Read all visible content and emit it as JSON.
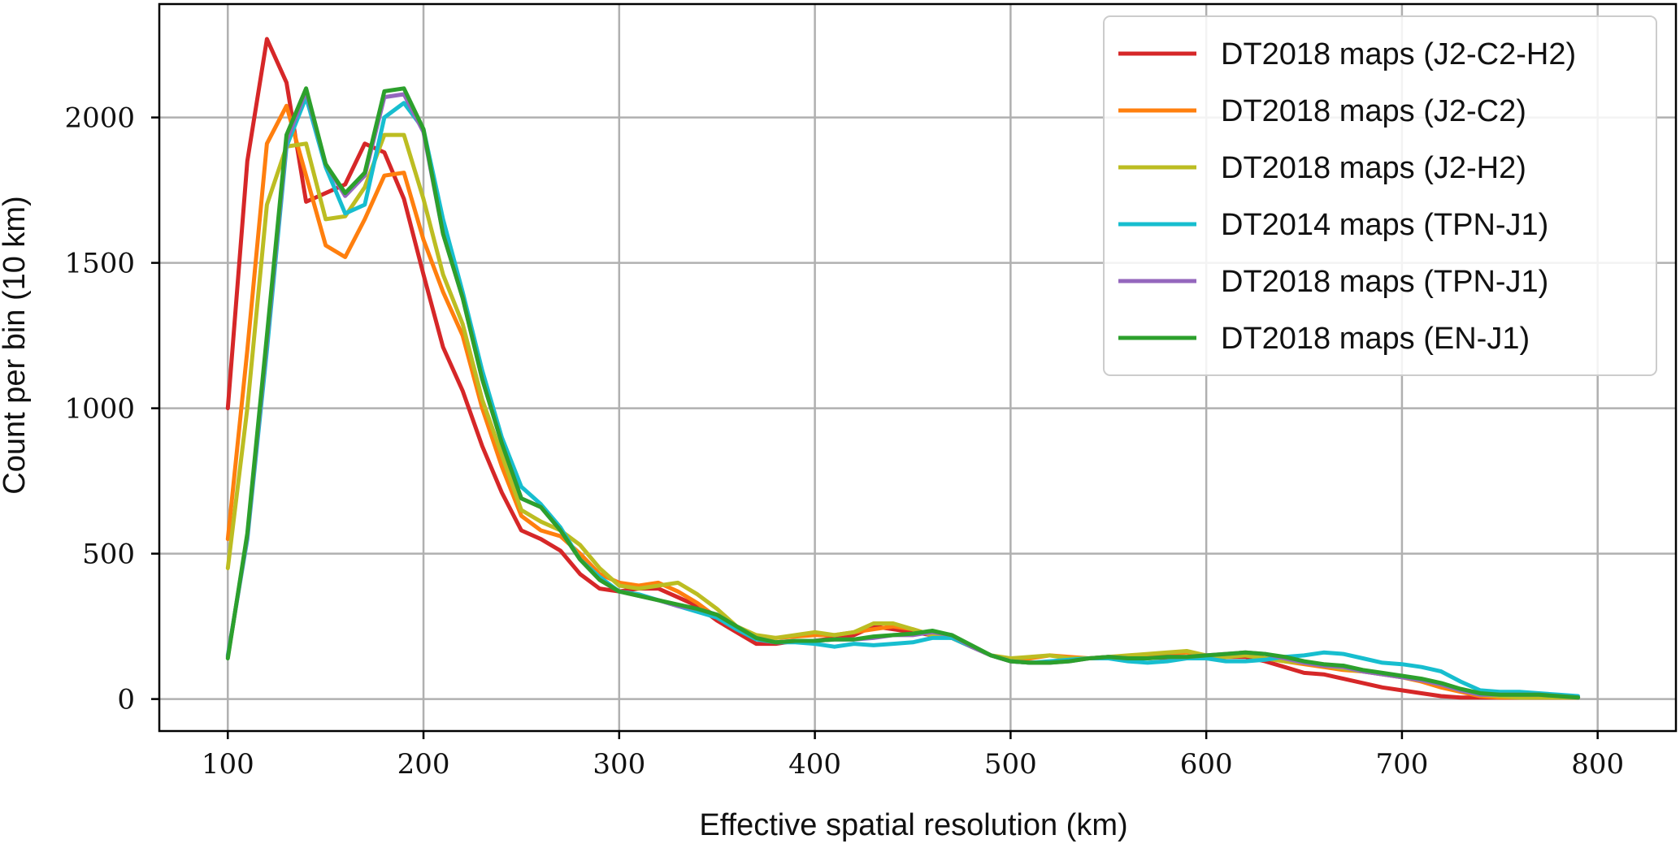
{
  "chart_data": {
    "type": "line",
    "title": "",
    "xlabel": "Effective spatial resolution (km)",
    "ylabel": "Count per bin (10 km)",
    "xlim": [
      65,
      840
    ],
    "ylim": [
      -110,
      2390
    ],
    "xticks": [
      100,
      200,
      300,
      400,
      500,
      600,
      700,
      800
    ],
    "yticks": [
      0,
      500,
      1000,
      1500,
      2000
    ],
    "xtick_labels": [
      "100",
      "200",
      "300",
      "400",
      "500",
      "600",
      "700",
      "800"
    ],
    "ytick_labels": [
      "0",
      "500",
      "1000",
      "1500",
      "2000"
    ],
    "grid": true,
    "legend_position": "top-right",
    "x": [
      100,
      110,
      120,
      130,
      140,
      150,
      160,
      170,
      180,
      190,
      200,
      210,
      220,
      230,
      240,
      250,
      260,
      270,
      280,
      290,
      300,
      310,
      320,
      330,
      340,
      350,
      360,
      370,
      380,
      390,
      400,
      410,
      420,
      430,
      440,
      450,
      460,
      470,
      480,
      490,
      500,
      510,
      520,
      530,
      540,
      550,
      560,
      570,
      580,
      590,
      600,
      610,
      620,
      630,
      640,
      650,
      660,
      670,
      680,
      690,
      700,
      710,
      720,
      730,
      740,
      750,
      760,
      770,
      780,
      790
    ],
    "series": [
      {
        "name": "DT2018 maps (J2-C2-H2)",
        "color": "#d62728",
        "values": [
          1000,
          1850,
          2270,
          2120,
          1710,
          1740,
          1770,
          1910,
          1880,
          1720,
          1460,
          1210,
          1060,
          870,
          710,
          580,
          550,
          510,
          430,
          380,
          370,
          380,
          380,
          350,
          320,
          270,
          230,
          190,
          190,
          200,
          200,
          210,
          220,
          250,
          240,
          230,
          220,
          210,
          180,
          150,
          130,
          125,
          125,
          135,
          140,
          140,
          140,
          145,
          140,
          140,
          140,
          145,
          145,
          130,
          110,
          90,
          85,
          70,
          55,
          40,
          30,
          20,
          10,
          5,
          5,
          5,
          5,
          5,
          5,
          5
        ]
      },
      {
        "name": "DT2018 maps (J2-C2)",
        "color": "#ff7f0e",
        "values": [
          550,
          1200,
          1910,
          2040,
          1800,
          1560,
          1520,
          1650,
          1800,
          1810,
          1580,
          1400,
          1250,
          1000,
          800,
          630,
          580,
          560,
          500,
          430,
          400,
          390,
          400,
          370,
          330,
          280,
          240,
          210,
          210,
          215,
          220,
          220,
          230,
          240,
          250,
          240,
          220,
          210,
          180,
          150,
          130,
          140,
          150,
          145,
          140,
          145,
          140,
          150,
          155,
          160,
          150,
          145,
          150,
          140,
          130,
          120,
          110,
          100,
          95,
          85,
          75,
          60,
          40,
          25,
          10,
          5,
          5,
          5,
          5,
          5
        ]
      },
      {
        "name": "DT2018 maps (J2-H2)",
        "color": "#bcbd22",
        "values": [
          450,
          1000,
          1700,
          1900,
          1910,
          1650,
          1660,
          1760,
          1940,
          1940,
          1720,
          1460,
          1290,
          1030,
          840,
          650,
          610,
          580,
          530,
          450,
          390,
          380,
          390,
          400,
          360,
          310,
          250,
          220,
          210,
          220,
          230,
          220,
          230,
          260,
          260,
          240,
          220,
          210,
          180,
          150,
          140,
          145,
          150,
          140,
          140,
          145,
          150,
          155,
          160,
          165,
          150,
          145,
          150,
          140,
          130,
          125,
          115,
          105,
          95,
          85,
          75,
          65,
          50,
          30,
          15,
          10,
          5,
          5,
          5,
          5
        ]
      },
      {
        "name": "DT2014 maps (TPN-J1)",
        "color": "#17becf",
        "values": [
          150,
          550,
          1200,
          1900,
          2070,
          1830,
          1670,
          1700,
          2000,
          2050,
          1960,
          1650,
          1400,
          1130,
          900,
          730,
          670,
          590,
          480,
          420,
          370,
          360,
          340,
          320,
          300,
          280,
          240,
          205,
          195,
          195,
          190,
          180,
          190,
          185,
          190,
          195,
          210,
          210,
          180,
          150,
          130,
          125,
          130,
          135,
          140,
          140,
          130,
          125,
          130,
          140,
          140,
          130,
          130,
          135,
          145,
          150,
          160,
          155,
          140,
          125,
          120,
          110,
          95,
          60,
          30,
          25,
          25,
          20,
          15,
          10
        ]
      },
      {
        "name": "DT2018 maps (TPN-J1)",
        "color": "#9467bd",
        "values": [
          145,
          560,
          1230,
          1920,
          2090,
          1840,
          1730,
          1800,
          2070,
          2080,
          1950,
          1600,
          1380,
          1100,
          880,
          690,
          660,
          580,
          480,
          410,
          370,
          355,
          340,
          320,
          310,
          290,
          250,
          210,
          195,
          200,
          200,
          205,
          205,
          210,
          220,
          220,
          230,
          220,
          180,
          150,
          130,
          125,
          125,
          130,
          140,
          145,
          140,
          140,
          145,
          145,
          150,
          155,
          160,
          155,
          140,
          125,
          115,
          110,
          95,
          85,
          75,
          65,
          50,
          30,
          15,
          15,
          15,
          15,
          10,
          5
        ]
      },
      {
        "name": "DT2018 maps (EN-J1)",
        "color": "#2ca02c",
        "values": [
          140,
          570,
          1250,
          1940,
          2100,
          1840,
          1740,
          1810,
          2090,
          2100,
          1960,
          1600,
          1380,
          1100,
          880,
          690,
          660,
          580,
          480,
          410,
          370,
          355,
          340,
          325,
          310,
          290,
          250,
          210,
          195,
          200,
          200,
          205,
          205,
          215,
          220,
          225,
          235,
          220,
          185,
          150,
          130,
          125,
          125,
          130,
          140,
          145,
          140,
          140,
          145,
          145,
          150,
          155,
          160,
          155,
          145,
          130,
          120,
          115,
          100,
          90,
          80,
          70,
          55,
          35,
          20,
          15,
          15,
          15,
          10,
          5
        ]
      }
    ]
  }
}
